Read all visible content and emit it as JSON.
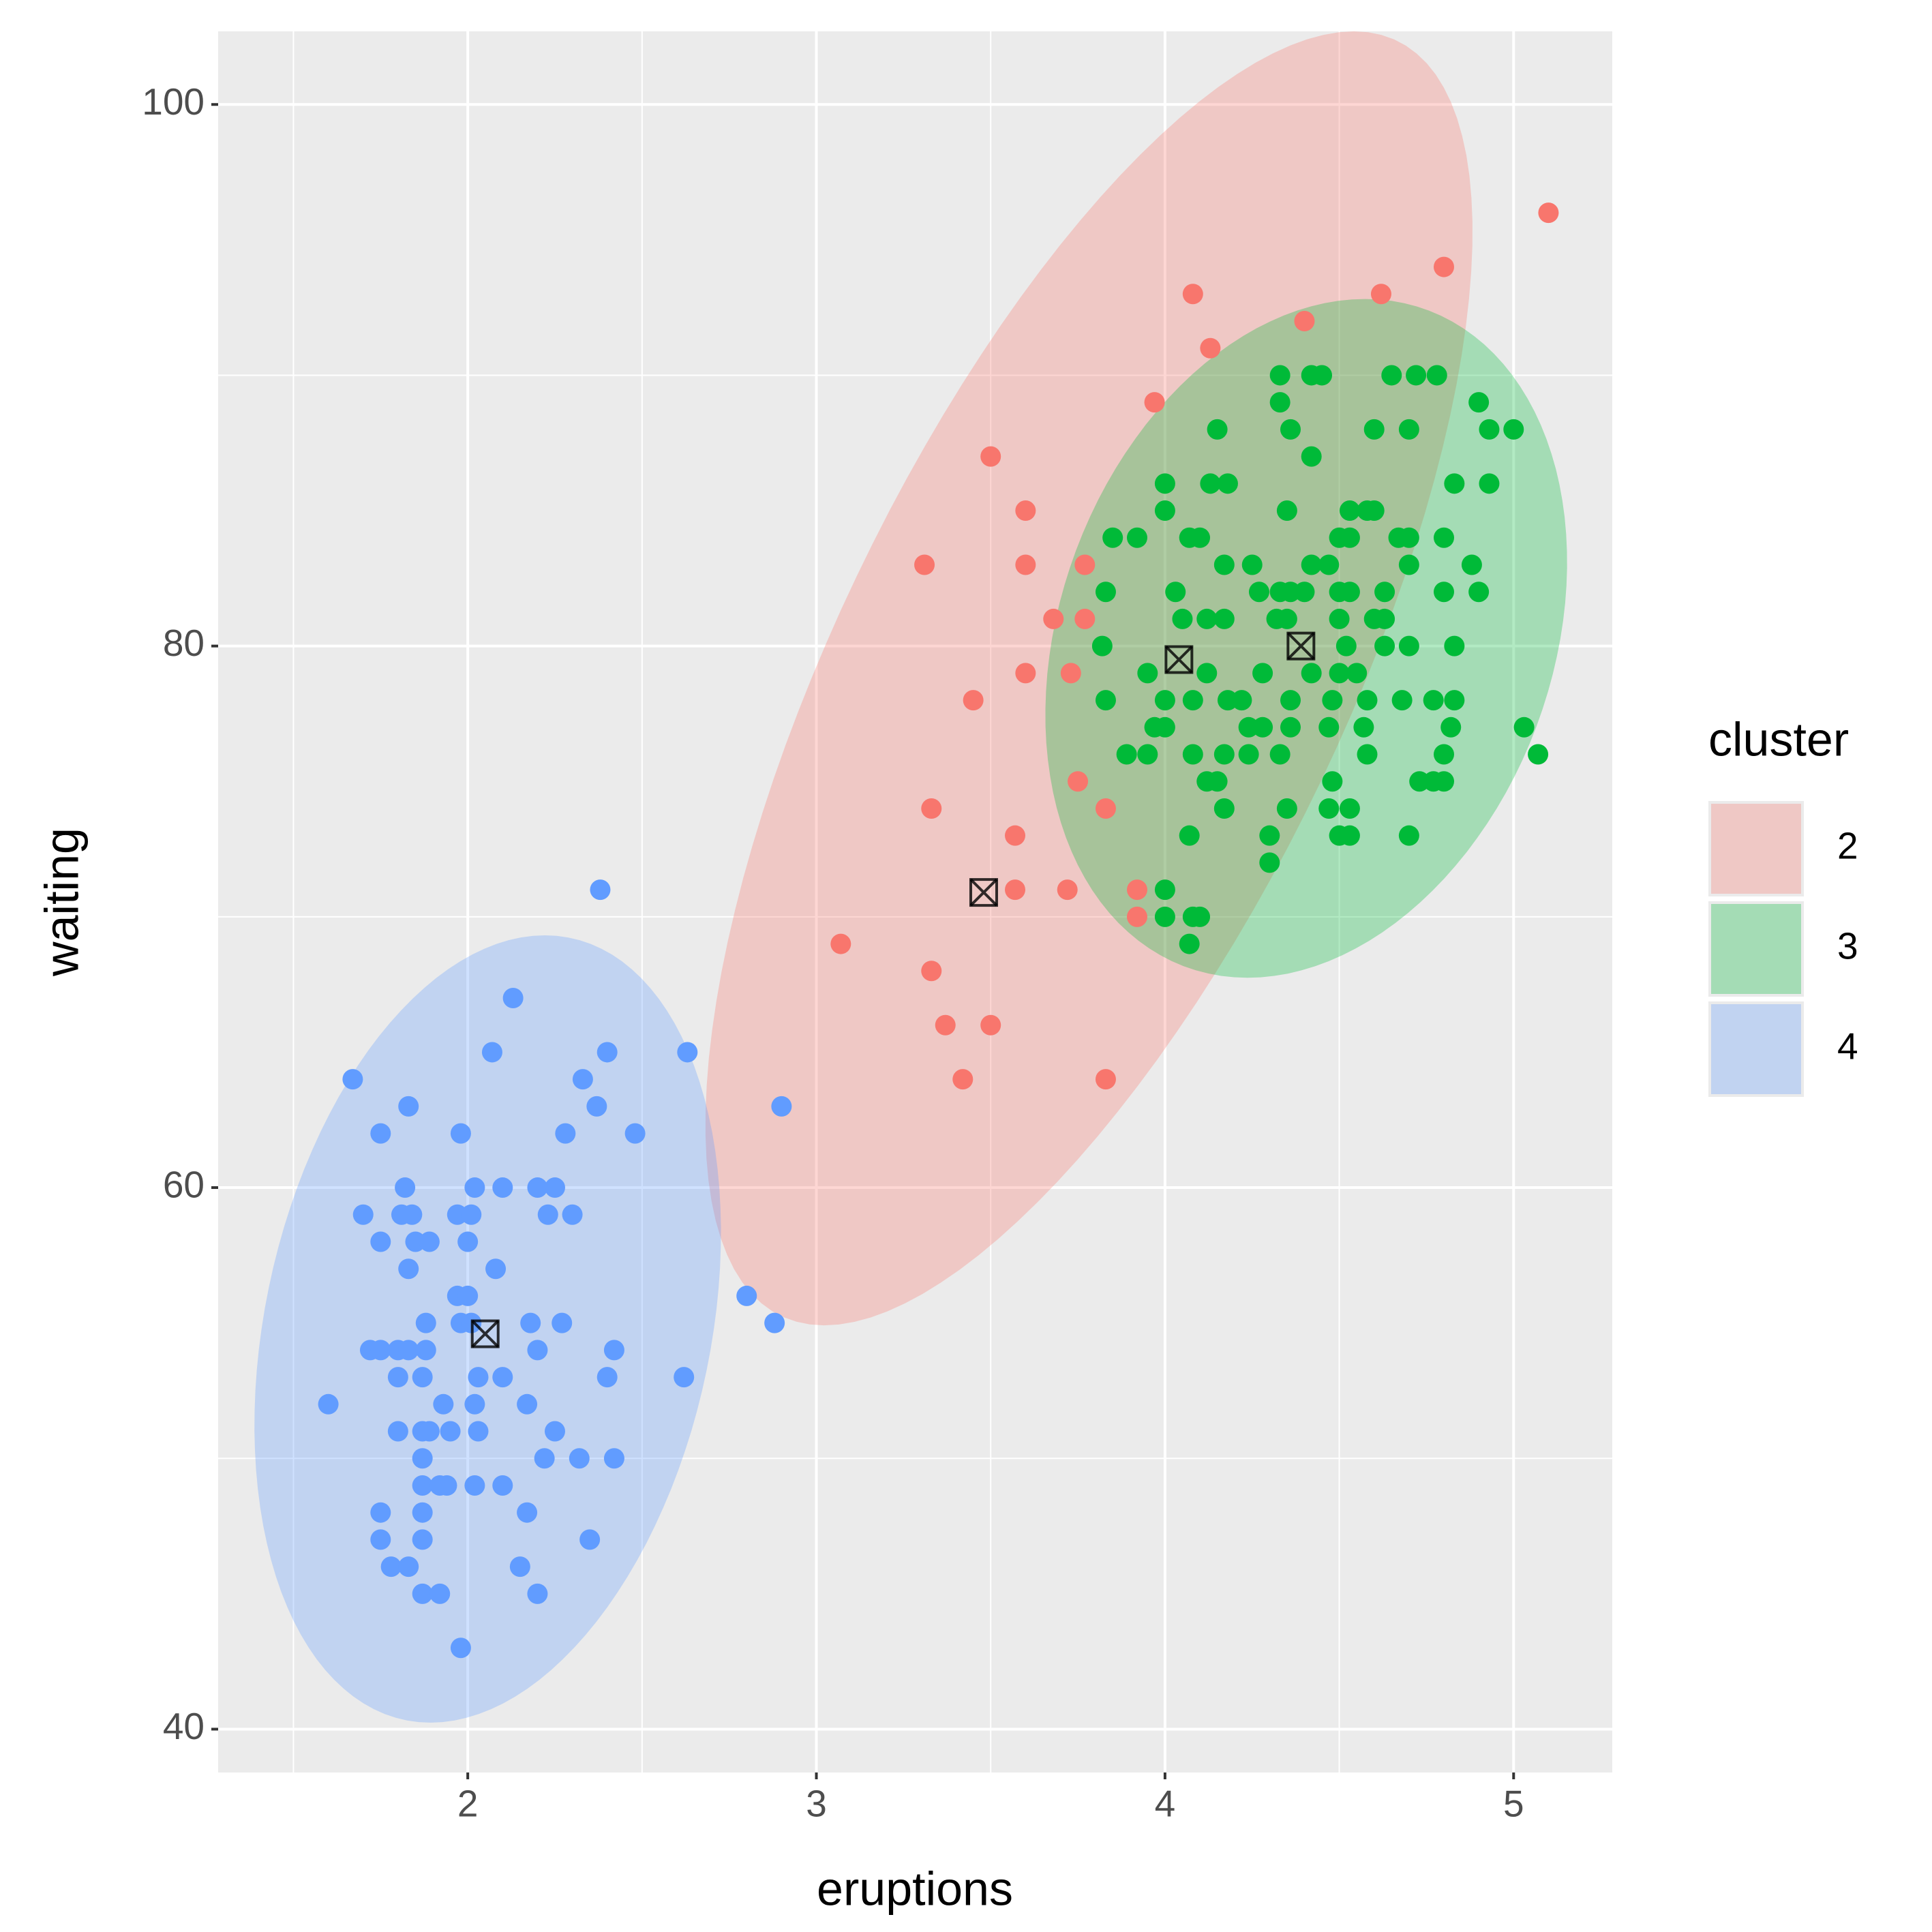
{
  "chart_data": {
    "type": "scatter",
    "x_label": "eruptions",
    "y_label": "waiting",
    "legend_title": "cluster",
    "xlim": [
      1.284,
      5.283
    ],
    "ylim": [
      38.4,
      102.7
    ],
    "xticks": [
      2,
      3,
      4,
      5
    ],
    "yticks": [
      40,
      60,
      80,
      100
    ],
    "grid": true,
    "legend": "right",
    "series": [
      {
        "name": "2",
        "color": "#F8766D",
        "x": [
          5.1,
          4.8,
          4.08,
          4.62,
          4.4,
          4.13,
          3.97,
          3.5,
          3.6,
          3.31,
          3.6,
          3.77,
          3.68,
          3.77,
          3.6,
          3.73,
          3.45,
          3.75,
          3.83,
          3.33,
          3.57,
          3.57,
          3.72,
          3.92,
          3.92,
          3.07,
          3.33,
          3.37,
          3.5,
          3.42,
          3.83
        ],
        "values": [
          96,
          94,
          93,
          93,
          92,
          91,
          89,
          87,
          85,
          83,
          83,
          83,
          81,
          81,
          79,
          79,
          78,
          75,
          74,
          74,
          73,
          71,
          71,
          71,
          70,
          69,
          68,
          66,
          66,
          64,
          64
        ]
      },
      {
        "name": "3",
        "color": "#00BA38",
        "x": [
          4.33,
          4.42,
          4.45,
          4.65,
          4.72,
          4.78,
          4.33,
          4.9,
          4.15,
          4.36,
          4.6,
          4.7,
          4.93,
          5.0,
          4.42,
          4.0,
          4.13,
          4.18,
          4.83,
          4.93,
          4.0,
          4.35,
          4.53,
          4.58,
          4.6,
          3.85,
          3.92,
          4.07,
          4.1,
          4.5,
          4.53,
          4.67,
          4.7,
          4.8,
          4.17,
          4.25,
          4.42,
          4.47,
          4.7,
          4.88,
          3.83,
          4.03,
          4.27,
          4.33,
          4.36,
          4.4,
          4.5,
          4.53,
          4.63,
          4.8,
          4.9,
          4.05,
          4.12,
          4.17,
          4.32,
          4.35,
          4.5,
          4.6,
          4.63,
          3.82,
          4.52,
          4.63,
          4.7,
          4.83,
          3.95,
          4.12,
          4.28,
          4.42,
          4.5,
          4.55,
          3.83,
          4.0,
          4.08,
          4.18,
          4.22,
          4.36,
          4.48,
          4.58,
          4.68,
          4.77,
          4.83,
          3.97,
          4.0,
          4.24,
          4.28,
          4.36,
          4.47,
          4.57,
          4.82,
          5.03,
          3.89,
          3.95,
          4.08,
          4.17,
          4.24,
          4.33,
          4.58,
          4.8,
          5.07,
          4.12,
          4.15,
          4.48,
          4.73,
          4.77,
          4.8,
          4.17,
          4.35,
          4.47,
          4.53,
          4.07,
          4.3,
          4.5,
          4.53,
          4.7,
          4.3,
          4.0,
          4.0,
          4.08,
          4.1,
          4.07
        ],
        "values": [
          90,
          90,
          90,
          90,
          90,
          90,
          89,
          89,
          88,
          88,
          88,
          88,
          88,
          88,
          87,
          86,
          86,
          86,
          86,
          86,
          85,
          85,
          85,
          85,
          85,
          84,
          84,
          84,
          84,
          84,
          84,
          84,
          84,
          84,
          83,
          83,
          83,
          83,
          83,
          83,
          82,
          82,
          82,
          82,
          82,
          82,
          82,
          82,
          82,
          82,
          82,
          81,
          81,
          81,
          81,
          81,
          81,
          81,
          81,
          80,
          80,
          80,
          80,
          80,
          79,
          79,
          79,
          79,
          79,
          79,
          78,
          78,
          78,
          78,
          78,
          78,
          78,
          78,
          78,
          78,
          78,
          77,
          77,
          77,
          77,
          77,
          77,
          77,
          77,
          77,
          76,
          76,
          76,
          76,
          76,
          76,
          76,
          76,
          76,
          75,
          75,
          75,
          75,
          75,
          75,
          74,
          74,
          74,
          74,
          73,
          73,
          73,
          73,
          73,
          72,
          71,
          70,
          70,
          70,
          69
        ]
      },
      {
        "name": "4",
        "color": "#619CFF",
        "x": [
          2.38,
          2.13,
          2.07,
          2.4,
          2.63,
          1.67,
          2.33,
          1.83,
          2.37,
          2.9,
          1.75,
          1.98,
          2.28,
          2.48,
          1.82,
          2.02,
          2.1,
          2.2,
          2.25,
          1.7,
          1.81,
          1.84,
          1.97,
          2.01,
          2.23,
          2.3,
          1.75,
          1.85,
          1.89,
          2.0,
          1.83,
          2.08,
          1.97,
          2.0,
          2.8,
          1.88,
          1.98,
          2.01,
          2.18,
          2.27,
          2.88,
          1.72,
          1.75,
          1.8,
          1.83,
          1.88,
          2.2,
          2.42,
          1.8,
          1.87,
          2.03,
          2.1,
          2.4,
          2.62,
          1.6,
          1.93,
          2.02,
          2.17,
          1.8,
          1.87,
          1.89,
          1.95,
          2.03,
          2.25,
          1.87,
          2.22,
          2.32,
          2.42,
          1.87,
          1.92,
          1.94,
          2.02,
          2.1,
          1.75,
          1.87,
          2.17,
          1.75,
          1.87,
          2.35,
          1.78,
          1.83,
          2.15,
          1.87,
          1.92,
          2.2,
          1.98
        ],
        "values": [
          71,
          67,
          65,
          65,
          65,
          64,
          64,
          63,
          63,
          63,
          62,
          62,
          62,
          62,
          60,
          60,
          60,
          60,
          60,
          59,
          59,
          59,
          59,
          59,
          59,
          59,
          58,
          58,
          58,
          58,
          57,
          57,
          56,
          56,
          56,
          55,
          55,
          55,
          55,
          55,
          55,
          54,
          54,
          54,
          54,
          54,
          54,
          54,
          53,
          53,
          53,
          53,
          53,
          53,
          52,
          52,
          52,
          52,
          51,
          51,
          51,
          51,
          51,
          51,
          50,
          50,
          50,
          50,
          49,
          49,
          49,
          49,
          49,
          48,
          48,
          48,
          47,
          47,
          47,
          46,
          46,
          46,
          45,
          45,
          45,
          43
        ]
      }
    ],
    "centroids": {
      "x": [
        3.48,
        4.04,
        4.39,
        2.05
      ],
      "y": [
        70.9,
        79.5,
        80.0,
        54.6
      ]
    }
  }
}
